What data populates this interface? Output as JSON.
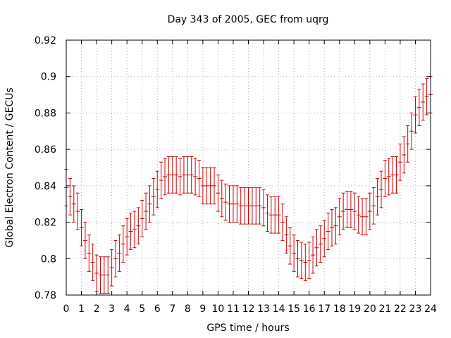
{
  "chart_data": {
    "type": "scatter",
    "title": "Day 343 of 2005, GEC from uqrg",
    "xlabel": "GPS time / hours",
    "ylabel": "Global Electron Content / GECUs",
    "xlim": [
      0,
      24
    ],
    "ylim": [
      0.78,
      0.92
    ],
    "xticks": [
      0,
      1,
      2,
      3,
      4,
      5,
      6,
      7,
      8,
      9,
      10,
      11,
      12,
      13,
      14,
      15,
      16,
      17,
      18,
      19,
      20,
      21,
      22,
      23,
      24
    ],
    "yticks": [
      0.78,
      0.8,
      0.82,
      0.84,
      0.86,
      0.88,
      0.9,
      0.92
    ],
    "grid": true,
    "legend": "none",
    "error_bars": true,
    "color": "#cc0000",
    "series": [
      {
        "x": [
          0.0,
          0.25,
          0.5,
          0.75,
          1.0,
          1.25,
          1.5,
          1.75,
          2.0,
          2.25,
          2.5,
          2.75,
          3.0,
          3.25,
          3.5,
          3.75,
          4.0,
          4.25,
          4.5,
          4.75,
          5.0,
          5.25,
          5.5,
          5.75,
          6.0,
          6.25,
          6.5,
          6.75,
          7.0,
          7.25,
          7.5,
          7.75,
          8.0,
          8.25,
          8.5,
          8.75,
          9.0,
          9.25,
          9.5,
          9.75,
          10.0,
          10.25,
          10.5,
          10.75,
          11.0,
          11.25,
          11.5,
          11.75,
          12.0,
          12.25,
          12.5,
          12.75,
          13.0,
          13.25,
          13.5,
          13.75,
          14.0,
          14.25,
          14.5,
          14.75,
          15.0,
          15.25,
          15.5,
          15.75,
          16.0,
          16.25,
          16.5,
          16.75,
          17.0,
          17.25,
          17.5,
          17.75,
          18.0,
          18.25,
          18.5,
          18.75,
          19.0,
          19.25,
          19.5,
          19.75,
          20.0,
          20.25,
          20.5,
          20.75,
          21.0,
          21.25,
          21.5,
          21.75,
          22.0,
          22.25,
          22.5,
          22.75,
          23.0,
          23.25,
          23.5,
          23.75,
          24.0
        ],
        "y": [
          0.839,
          0.834,
          0.83,
          0.826,
          0.817,
          0.81,
          0.803,
          0.798,
          0.792,
          0.791,
          0.791,
          0.791,
          0.795,
          0.8,
          0.803,
          0.808,
          0.812,
          0.815,
          0.816,
          0.818,
          0.822,
          0.826,
          0.83,
          0.834,
          0.838,
          0.843,
          0.845,
          0.846,
          0.846,
          0.846,
          0.845,
          0.846,
          0.846,
          0.846,
          0.845,
          0.844,
          0.84,
          0.84,
          0.84,
          0.84,
          0.836,
          0.833,
          0.831,
          0.83,
          0.83,
          0.83,
          0.829,
          0.829,
          0.829,
          0.829,
          0.829,
          0.829,
          0.828,
          0.825,
          0.824,
          0.824,
          0.824,
          0.82,
          0.813,
          0.807,
          0.803,
          0.8,
          0.799,
          0.798,
          0.799,
          0.802,
          0.806,
          0.808,
          0.811,
          0.815,
          0.817,
          0.818,
          0.823,
          0.826,
          0.827,
          0.827,
          0.826,
          0.824,
          0.823,
          0.823,
          0.826,
          0.829,
          0.834,
          0.838,
          0.844,
          0.845,
          0.846,
          0.846,
          0.853,
          0.857,
          0.863,
          0.87,
          0.879,
          0.883,
          0.886,
          0.889,
          0.89
        ],
        "err": 0.01
      }
    ]
  }
}
